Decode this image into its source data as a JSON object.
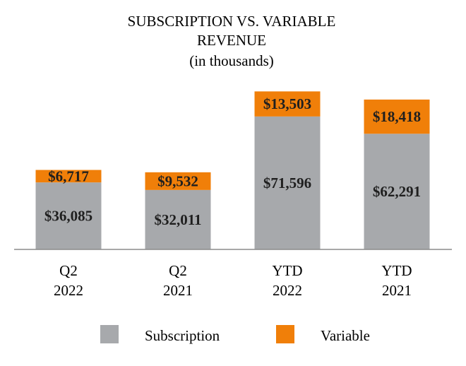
{
  "chart_data": {
    "type": "bar",
    "stacked": true,
    "title_lines": [
      "SUBSCRIPTION VS. VARIABLE",
      "REVENUE",
      "(in thousands)"
    ],
    "categories": [
      [
        "Q2",
        "2022"
      ],
      [
        "Q2",
        "2021"
      ],
      [
        "YTD",
        "2022"
      ],
      [
        "YTD",
        "2021"
      ]
    ],
    "series": [
      {
        "name": "Subscription",
        "color": "#a7a9ac",
        "values": [
          36085,
          32011,
          71596,
          62291
        ],
        "labels": [
          "$36,085",
          "$32,011",
          "$71,596",
          "$62,291"
        ]
      },
      {
        "name": "Variable",
        "color": "#f07f09",
        "values": [
          6717,
          9532,
          13503,
          18418
        ],
        "labels": [
          "$6,717",
          "$9,532",
          "$13,503",
          "$18,418"
        ]
      }
    ],
    "ylim": [
      0,
      86000
    ],
    "legend": "bottom",
    "grid": false
  }
}
